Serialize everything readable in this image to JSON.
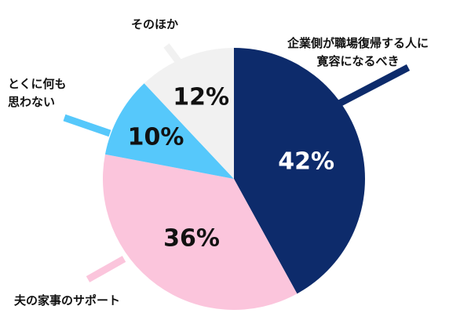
{
  "chart_data": {
    "type": "pie",
    "title": "",
    "slices": [
      {
        "label": [
          "企業側が職場復帰する人に",
          "寛容になるべき"
        ],
        "value": 42,
        "value_label": "42%",
        "color": "#0d2b6b",
        "text_color": "#ffffff"
      },
      {
        "label": [
          "夫の家事のサポート"
        ],
        "value": 36,
        "value_label": "36%",
        "color": "#fbc5dc",
        "text_color": "#111111"
      },
      {
        "label": [
          "とくに何も",
          "思わない"
        ],
        "value": 10,
        "value_label": "10%",
        "color": "#56c8fb",
        "text_color": "#111111"
      },
      {
        "label": [
          "そのほか"
        ],
        "value": 12,
        "value_label": "12%",
        "color": "#f1f1f1",
        "text_color": "#111111"
      }
    ]
  }
}
